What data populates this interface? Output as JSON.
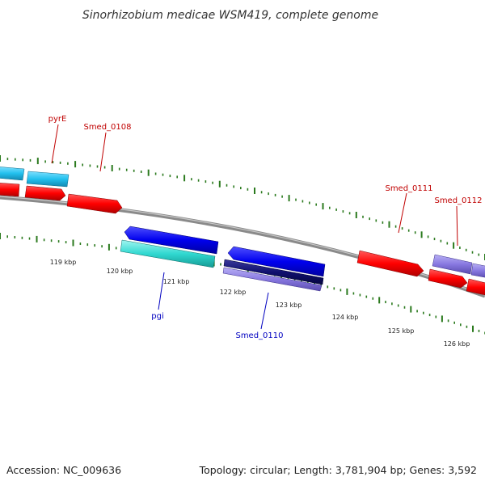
{
  "title": "Sinorhizobium medicae WSM419, complete genome",
  "footer": {
    "accession": "Accession: NC_009636",
    "summary": "Topology: circular; Length: 3,781,904 bp; Genes: 3,592"
  },
  "colors": {
    "backbone": "#8a8a8a",
    "tick_major": "#2b7a1e",
    "tick_minor": "#2b7a1e",
    "label_red": "#c00000",
    "label_blue": "#0000c0"
  },
  "scale": {
    "ticks": [
      "119 kbp",
      "120 kbp",
      "121 kbp",
      "122 kbp",
      "123 kbp",
      "124 kbp",
      "125 kbp",
      "126 kbp"
    ]
  },
  "genes": [
    {
      "name": "pyrE",
      "color": "#c00000"
    },
    {
      "name": "Smed_0108",
      "color": "#c00000"
    },
    {
      "name": "Smed_0111",
      "color": "#c00000"
    },
    {
      "name": "Smed_0112",
      "color": "#c00000"
    },
    {
      "name": "pgi",
      "color": "#0000c0"
    },
    {
      "name": "Smed_0110",
      "color": "#0000c0"
    }
  ]
}
